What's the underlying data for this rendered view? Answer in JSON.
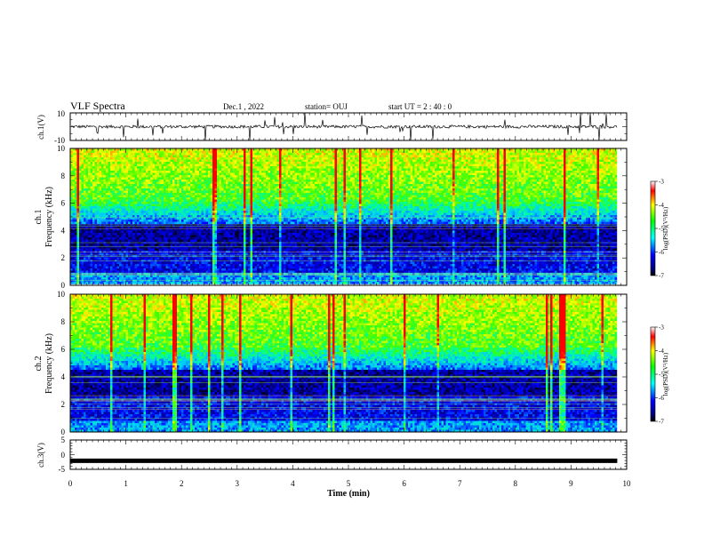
{
  "header": {
    "title": "VLF Spectra",
    "date": "Dec.1 , 2022",
    "station": "station= OUJ",
    "start": "start UT = 2 : 40 : 0"
  },
  "chart_data": [
    {
      "type": "line",
      "panel": "ch1-waveform",
      "ylabel": "ch.1(V)",
      "ylim": [
        -10,
        10
      ],
      "yticks": [
        "10",
        "-10"
      ],
      "xlim": [
        0,
        10
      ],
      "series": [
        {
          "values_baseline": 0
        }
      ],
      "color": "#000000"
    },
    {
      "type": "heatmap",
      "panel": "ch1-spectrogram",
      "ylabel_top": "ch.1",
      "ylabel": "Frequency (kHz)",
      "ylim": [
        0,
        10
      ],
      "yticks": [
        "0",
        "2",
        "4",
        "6",
        "8",
        "10"
      ],
      "xlim": [
        0,
        10
      ],
      "colorbar": {
        "label": "log(PSD)(V²/Hz)",
        "range": [
          -7,
          -3
        ],
        "ticks": [
          "-3",
          "-4",
          "-5",
          "-6",
          "-7"
        ]
      },
      "data_end_min": 9.83
    },
    {
      "type": "heatmap",
      "panel": "ch2-spectrogram",
      "ylabel_top": "ch.2",
      "ylabel": "Frequency (kHz)",
      "ylim": [
        0,
        10
      ],
      "yticks": [
        "0",
        "2",
        "4",
        "6",
        "8",
        "10"
      ],
      "xlim": [
        0,
        10
      ],
      "colorbar": {
        "label": "log(PSD)(V²/Hz)",
        "range": [
          -7,
          -3
        ],
        "ticks": [
          "-3",
          "-4",
          "-5",
          "-6",
          "-7"
        ]
      },
      "data_end_min": 9.83
    },
    {
      "type": "line",
      "panel": "ch3-waveform",
      "ylabel": "ch.3(V)",
      "ylim": [
        -5,
        5
      ],
      "yticks": [
        "5",
        "0",
        "-5"
      ],
      "xlim": [
        0,
        10
      ],
      "series": [
        {
          "values_constant": -2.1
        }
      ]
    }
  ],
  "xaxis": {
    "label": "Time (min)",
    "ticks": [
      "0",
      "1",
      "2",
      "3",
      "4",
      "5",
      "6",
      "7",
      "8",
      "9",
      "10"
    ]
  }
}
